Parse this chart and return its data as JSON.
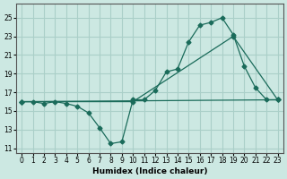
{
  "xlabel": "Humidex (Indice chaleur)",
  "background_color": "#cce8e2",
  "grid_color": "#aacfc8",
  "line_color": "#1a6b5a",
  "xlim": [
    -0.5,
    23.5
  ],
  "ylim": [
    10.5,
    26.5
  ],
  "yticks": [
    11,
    13,
    15,
    17,
    19,
    21,
    23,
    25
  ],
  "xticks": [
    0,
    1,
    2,
    3,
    4,
    5,
    6,
    7,
    8,
    9,
    10,
    11,
    12,
    13,
    14,
    15,
    16,
    17,
    18,
    19,
    20,
    21,
    22,
    23
  ],
  "line1_x": [
    0,
    1,
    2,
    3,
    4,
    5,
    6,
    7,
    8,
    9,
    10,
    11,
    12,
    13,
    14,
    15,
    16,
    17,
    18,
    19,
    20,
    21,
    22,
    23
  ],
  "line1_y": [
    16.0,
    16.0,
    15.8,
    16.0,
    15.8,
    15.5,
    14.8,
    13.2,
    11.5,
    11.7,
    16.2,
    16.2,
    17.2,
    19.2,
    19.5,
    22.4,
    24.2,
    24.5,
    25.0,
    23.2,
    19.8,
    17.5,
    16.2,
    16.2
  ],
  "line2_x": [
    0,
    10,
    19,
    23
  ],
  "line2_y": [
    16.0,
    16.0,
    23.0,
    16.2
  ],
  "line3_x": [
    0,
    23
  ],
  "line3_y": [
    16.0,
    16.2
  ]
}
